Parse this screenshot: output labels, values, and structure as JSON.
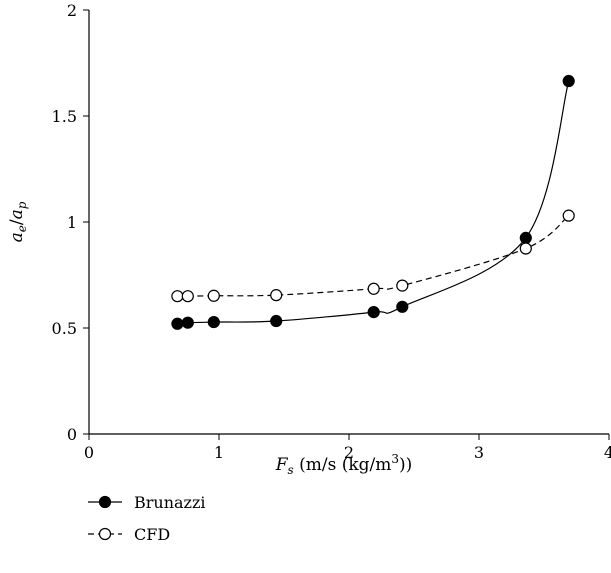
{
  "chart_data": {
    "type": "line",
    "title": "",
    "xlabel": {
      "main": "F",
      "sub": "s",
      "units": " (m/s (kg/m",
      "sup": "3",
      "close": "))"
    },
    "ylabel": {
      "a1": "a",
      "sub1": "e",
      "slash": "/",
      "a2": "a",
      "sub2": "p"
    },
    "xlim": [
      0,
      4
    ],
    "ylim": [
      0,
      2
    ],
    "xticks": [
      0,
      1,
      2,
      3,
      4
    ],
    "xtick_labels": [
      "0",
      "1",
      "2",
      "3",
      "4"
    ],
    "yticks": [
      0,
      0.5,
      1,
      1.5,
      2
    ],
    "ytick_labels": [
      "0",
      "0.5",
      "1",
      "1.5",
      "2"
    ],
    "grid": false,
    "legend_position": "bottom-left, below plot",
    "series": [
      {
        "name": "Brunazzi",
        "marker": "filled-circle",
        "line_style": "solid",
        "color": "#000000",
        "x": [
          0.68,
          0.76,
          0.96,
          1.44,
          2.19,
          2.41,
          3.36,
          3.69
        ],
        "y": [
          0.52,
          0.525,
          0.528,
          0.533,
          0.575,
          0.6,
          0.925,
          1.665
        ]
      },
      {
        "name": "CFD",
        "marker": "open-circle",
        "line_style": "dashed",
        "color": "#000000",
        "x": [
          0.68,
          0.76,
          0.96,
          1.44,
          2.19,
          2.41,
          3.36,
          3.69
        ],
        "y": [
          0.65,
          0.65,
          0.652,
          0.655,
          0.685,
          0.7,
          0.875,
          1.03
        ]
      }
    ]
  }
}
